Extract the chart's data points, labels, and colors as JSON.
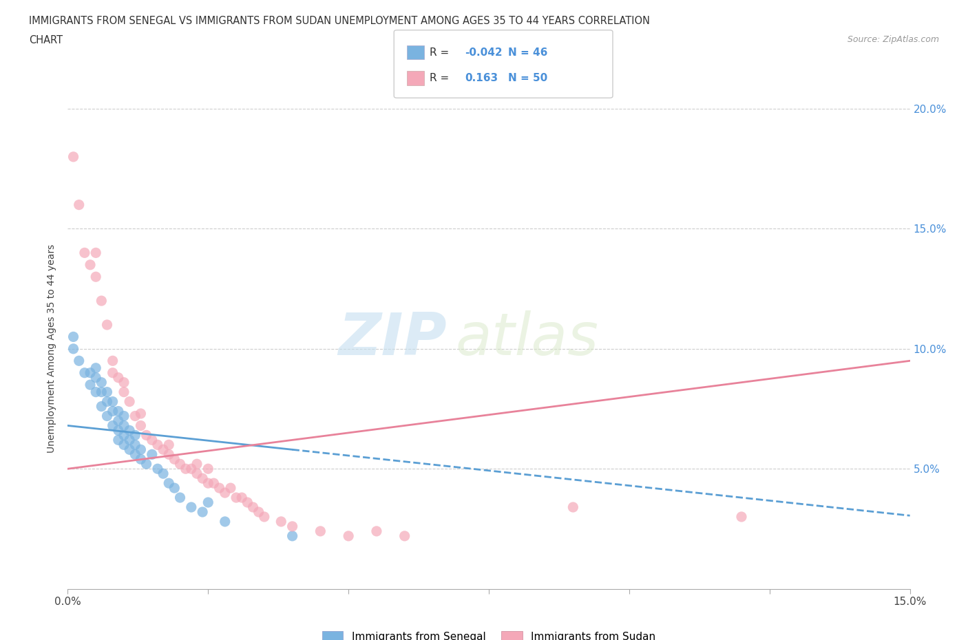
{
  "title_line1": "IMMIGRANTS FROM SENEGAL VS IMMIGRANTS FROM SUDAN UNEMPLOYMENT AMONG AGES 35 TO 44 YEARS CORRELATION",
  "title_line2": "CHART",
  "source_text": "Source: ZipAtlas.com",
  "ylabel": "Unemployment Among Ages 35 to 44 years",
  "xlim": [
    0.0,
    0.15
  ],
  "ylim": [
    0.0,
    0.2
  ],
  "xticks": [
    0.0,
    0.025,
    0.05,
    0.075,
    0.1,
    0.125,
    0.15
  ],
  "xticklabels": [
    "0.0%",
    "",
    "",
    "",
    "",
    "",
    "15.0%"
  ],
  "yticks": [
    0.0,
    0.05,
    0.1,
    0.15,
    0.2
  ],
  "left_yticklabels": [
    "",
    "",
    "",
    "",
    ""
  ],
  "right_yticklabels": [
    "",
    "5.0%",
    "10.0%",
    "15.0%",
    "20.0%"
  ],
  "senegal_color": "#7ab3e0",
  "sudan_color": "#f4a8b8",
  "senegal_line_color": "#5b9fd4",
  "sudan_line_color": "#e8829a",
  "senegal_R": -0.042,
  "senegal_N": 46,
  "sudan_R": 0.163,
  "sudan_N": 50,
  "watermark_zip": "ZIP",
  "watermark_atlas": "atlas",
  "legend_label_senegal": "Immigrants from Senegal",
  "legend_label_sudan": "Immigrants from Sudan",
  "senegal_scatter_x": [
    0.001,
    0.001,
    0.002,
    0.003,
    0.004,
    0.004,
    0.005,
    0.005,
    0.005,
    0.006,
    0.006,
    0.006,
    0.007,
    0.007,
    0.007,
    0.008,
    0.008,
    0.008,
    0.009,
    0.009,
    0.009,
    0.009,
    0.01,
    0.01,
    0.01,
    0.01,
    0.011,
    0.011,
    0.011,
    0.012,
    0.012,
    0.012,
    0.013,
    0.013,
    0.014,
    0.015,
    0.016,
    0.017,
    0.018,
    0.019,
    0.02,
    0.022,
    0.024,
    0.025,
    0.028,
    0.04
  ],
  "senegal_scatter_y": [
    0.1,
    0.105,
    0.095,
    0.09,
    0.085,
    0.09,
    0.082,
    0.088,
    0.092,
    0.076,
    0.082,
    0.086,
    0.072,
    0.078,
    0.082,
    0.068,
    0.074,
    0.078,
    0.062,
    0.066,
    0.07,
    0.074,
    0.06,
    0.064,
    0.068,
    0.072,
    0.058,
    0.062,
    0.066,
    0.056,
    0.06,
    0.064,
    0.054,
    0.058,
    0.052,
    0.056,
    0.05,
    0.048,
    0.044,
    0.042,
    0.038,
    0.034,
    0.032,
    0.036,
    0.028,
    0.022
  ],
  "sudan_scatter_x": [
    0.001,
    0.002,
    0.003,
    0.004,
    0.005,
    0.005,
    0.006,
    0.007,
    0.008,
    0.008,
    0.009,
    0.01,
    0.01,
    0.011,
    0.012,
    0.013,
    0.013,
    0.014,
    0.015,
    0.016,
    0.017,
    0.018,
    0.018,
    0.019,
    0.02,
    0.021,
    0.022,
    0.023,
    0.023,
    0.024,
    0.025,
    0.025,
    0.026,
    0.027,
    0.028,
    0.029,
    0.03,
    0.031,
    0.032,
    0.033,
    0.034,
    0.035,
    0.038,
    0.04,
    0.045,
    0.05,
    0.055,
    0.06,
    0.09,
    0.12
  ],
  "sudan_scatter_y": [
    0.18,
    0.16,
    0.14,
    0.135,
    0.13,
    0.14,
    0.12,
    0.11,
    0.09,
    0.095,
    0.088,
    0.082,
    0.086,
    0.078,
    0.072,
    0.068,
    0.073,
    0.064,
    0.062,
    0.06,
    0.058,
    0.056,
    0.06,
    0.054,
    0.052,
    0.05,
    0.05,
    0.048,
    0.052,
    0.046,
    0.044,
    0.05,
    0.044,
    0.042,
    0.04,
    0.042,
    0.038,
    0.038,
    0.036,
    0.034,
    0.032,
    0.03,
    0.028,
    0.026,
    0.024,
    0.022,
    0.024,
    0.022,
    0.034,
    0.03
  ]
}
